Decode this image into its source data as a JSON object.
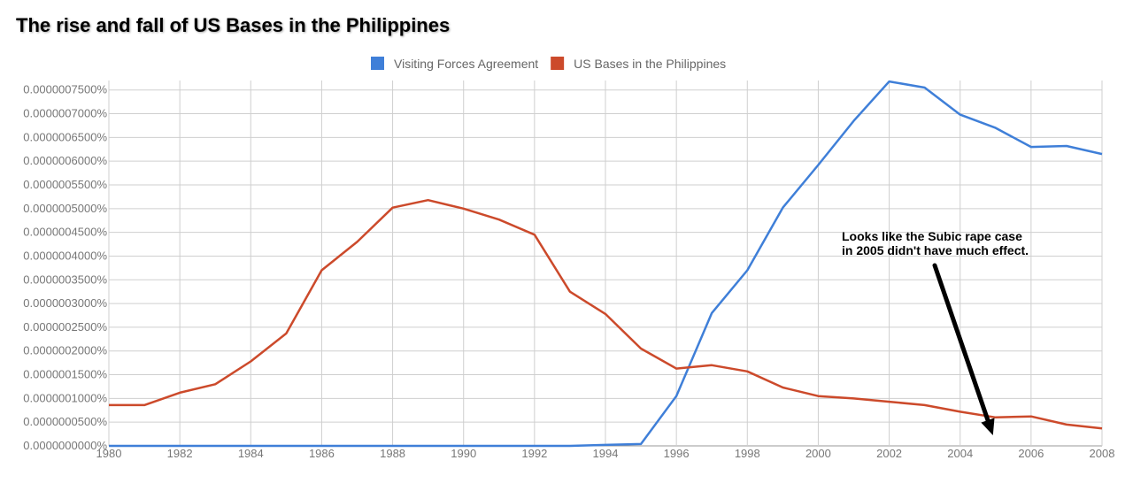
{
  "page": {
    "title": "The rise and fall of US Bases in the Philippines"
  },
  "chart_data": {
    "type": "line",
    "title": "The rise and fall of US Bases in the Philippines",
    "xlabel": "",
    "ylabel": "",
    "xlim": [
      1980,
      2008
    ],
    "ylim": [
      0,
      7.7e-07
    ],
    "grid": true,
    "legend_position": "top-center",
    "x_ticks": [
      1980,
      1982,
      1984,
      1986,
      1988,
      1990,
      1992,
      1994,
      1996,
      1998,
      2000,
      2002,
      2004,
      2006,
      2008
    ],
    "x_tick_labels": [
      "1980",
      "1982",
      "1984",
      "1986",
      "1988",
      "1990",
      "1992",
      "1994",
      "1996",
      "1998",
      "2000",
      "2002",
      "2004",
      "2006",
      "2008"
    ],
    "y_tick_values": [
      0,
      5e-08,
      1e-07,
      1.5e-07,
      2e-07,
      2.5e-07,
      3e-07,
      3.5e-07,
      4e-07,
      4.5e-07,
      5e-07,
      5.5e-07,
      6e-07,
      6.5e-07,
      7e-07,
      7.5e-07
    ],
    "y_tick_labels": [
      "0.0000000000%",
      "0.0000000500%",
      "0.0000001000%",
      "0.0000001500%",
      "0.0000002000%",
      "0.0000002500%",
      "0.0000003000%",
      "0.0000003500%",
      "0.0000004000%",
      "0.0000004500%",
      "0.0000005000%",
      "0.0000005500%",
      "0.0000006000%",
      "0.0000006500%",
      "0.0000007000%",
      "0.0000007500%"
    ],
    "x": [
      1980,
      1981,
      1982,
      1983,
      1984,
      1985,
      1986,
      1987,
      1988,
      1989,
      1990,
      1991,
      1992,
      1993,
      1994,
      1995,
      1996,
      1997,
      1998,
      1999,
      2000,
      2001,
      2002,
      2003,
      2004,
      2005,
      2006,
      2007,
      2008
    ],
    "series": [
      {
        "name": "Visiting Forces Agreement",
        "color": "#3f7fd8",
        "values": [
          0,
          0,
          0,
          0,
          0,
          0,
          0,
          0,
          0,
          0,
          0,
          0,
          0,
          0,
          2e-09,
          4e-09,
          1.05e-07,
          2.8e-07,
          3.7e-07,
          5.02e-07,
          5.92e-07,
          6.85e-07,
          7.68e-07,
          7.55e-07,
          6.98e-07,
          6.7e-07,
          6.3e-07,
          6.32e-07,
          6.15e-07
        ]
      },
      {
        "name": "US Bases in the Philippines",
        "color": "#cc4a2b",
        "values": [
          8.6e-08,
          8.6e-08,
          1.12e-07,
          1.3e-07,
          1.78e-07,
          2.37e-07,
          3.7e-07,
          4.3e-07,
          5.02e-07,
          5.18e-07,
          5e-07,
          4.77e-07,
          4.45e-07,
          3.25e-07,
          2.78e-07,
          2.05e-07,
          1.63e-07,
          1.7e-07,
          1.57e-07,
          1.23e-07,
          1.05e-07,
          1e-07,
          9.3e-08,
          8.6e-08,
          7.2e-08,
          6e-08,
          6.2e-08,
          4.5e-08,
          3.7e-08
        ]
      }
    ],
    "annotations": [
      {
        "lines": [
          "Looks like the Subic rape case",
          "in 2005 didn't have much effect."
        ],
        "points_to_x": 2005
      }
    ]
  }
}
